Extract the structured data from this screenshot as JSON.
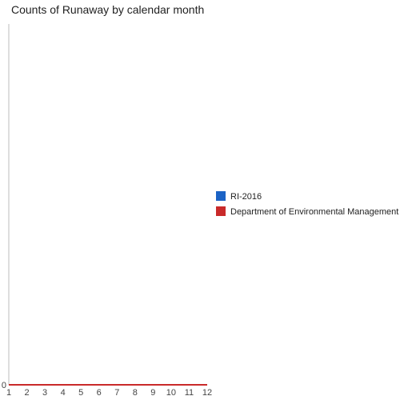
{
  "chart_data": {
    "type": "line",
    "title": "Counts of Runaway by calendar month",
    "xlabel": "",
    "ylabel": "",
    "x": [
      1,
      2,
      3,
      4,
      5,
      6,
      7,
      8,
      9,
      10,
      11,
      12
    ],
    "x_ticks": [
      "1",
      "2",
      "3",
      "4",
      "5",
      "6",
      "7",
      "8",
      "9",
      "10",
      "11",
      "12"
    ],
    "y_ticks": [
      "0"
    ],
    "xlim": [
      1,
      12
    ],
    "ylim": [
      0,
      1
    ],
    "grid": false,
    "legend_position": "right",
    "series": [
      {
        "name": "RI-2016",
        "color": "#1c63c5",
        "values": [
          0,
          0,
          0,
          0,
          0,
          0,
          0,
          0,
          0,
          0,
          0,
          0
        ]
      },
      {
        "name": "Department of Environmental Management",
        "color": "#c92a2a",
        "values": [
          0,
          0,
          0,
          0,
          0,
          0,
          0,
          0,
          0,
          0,
          0,
          0
        ]
      }
    ]
  }
}
